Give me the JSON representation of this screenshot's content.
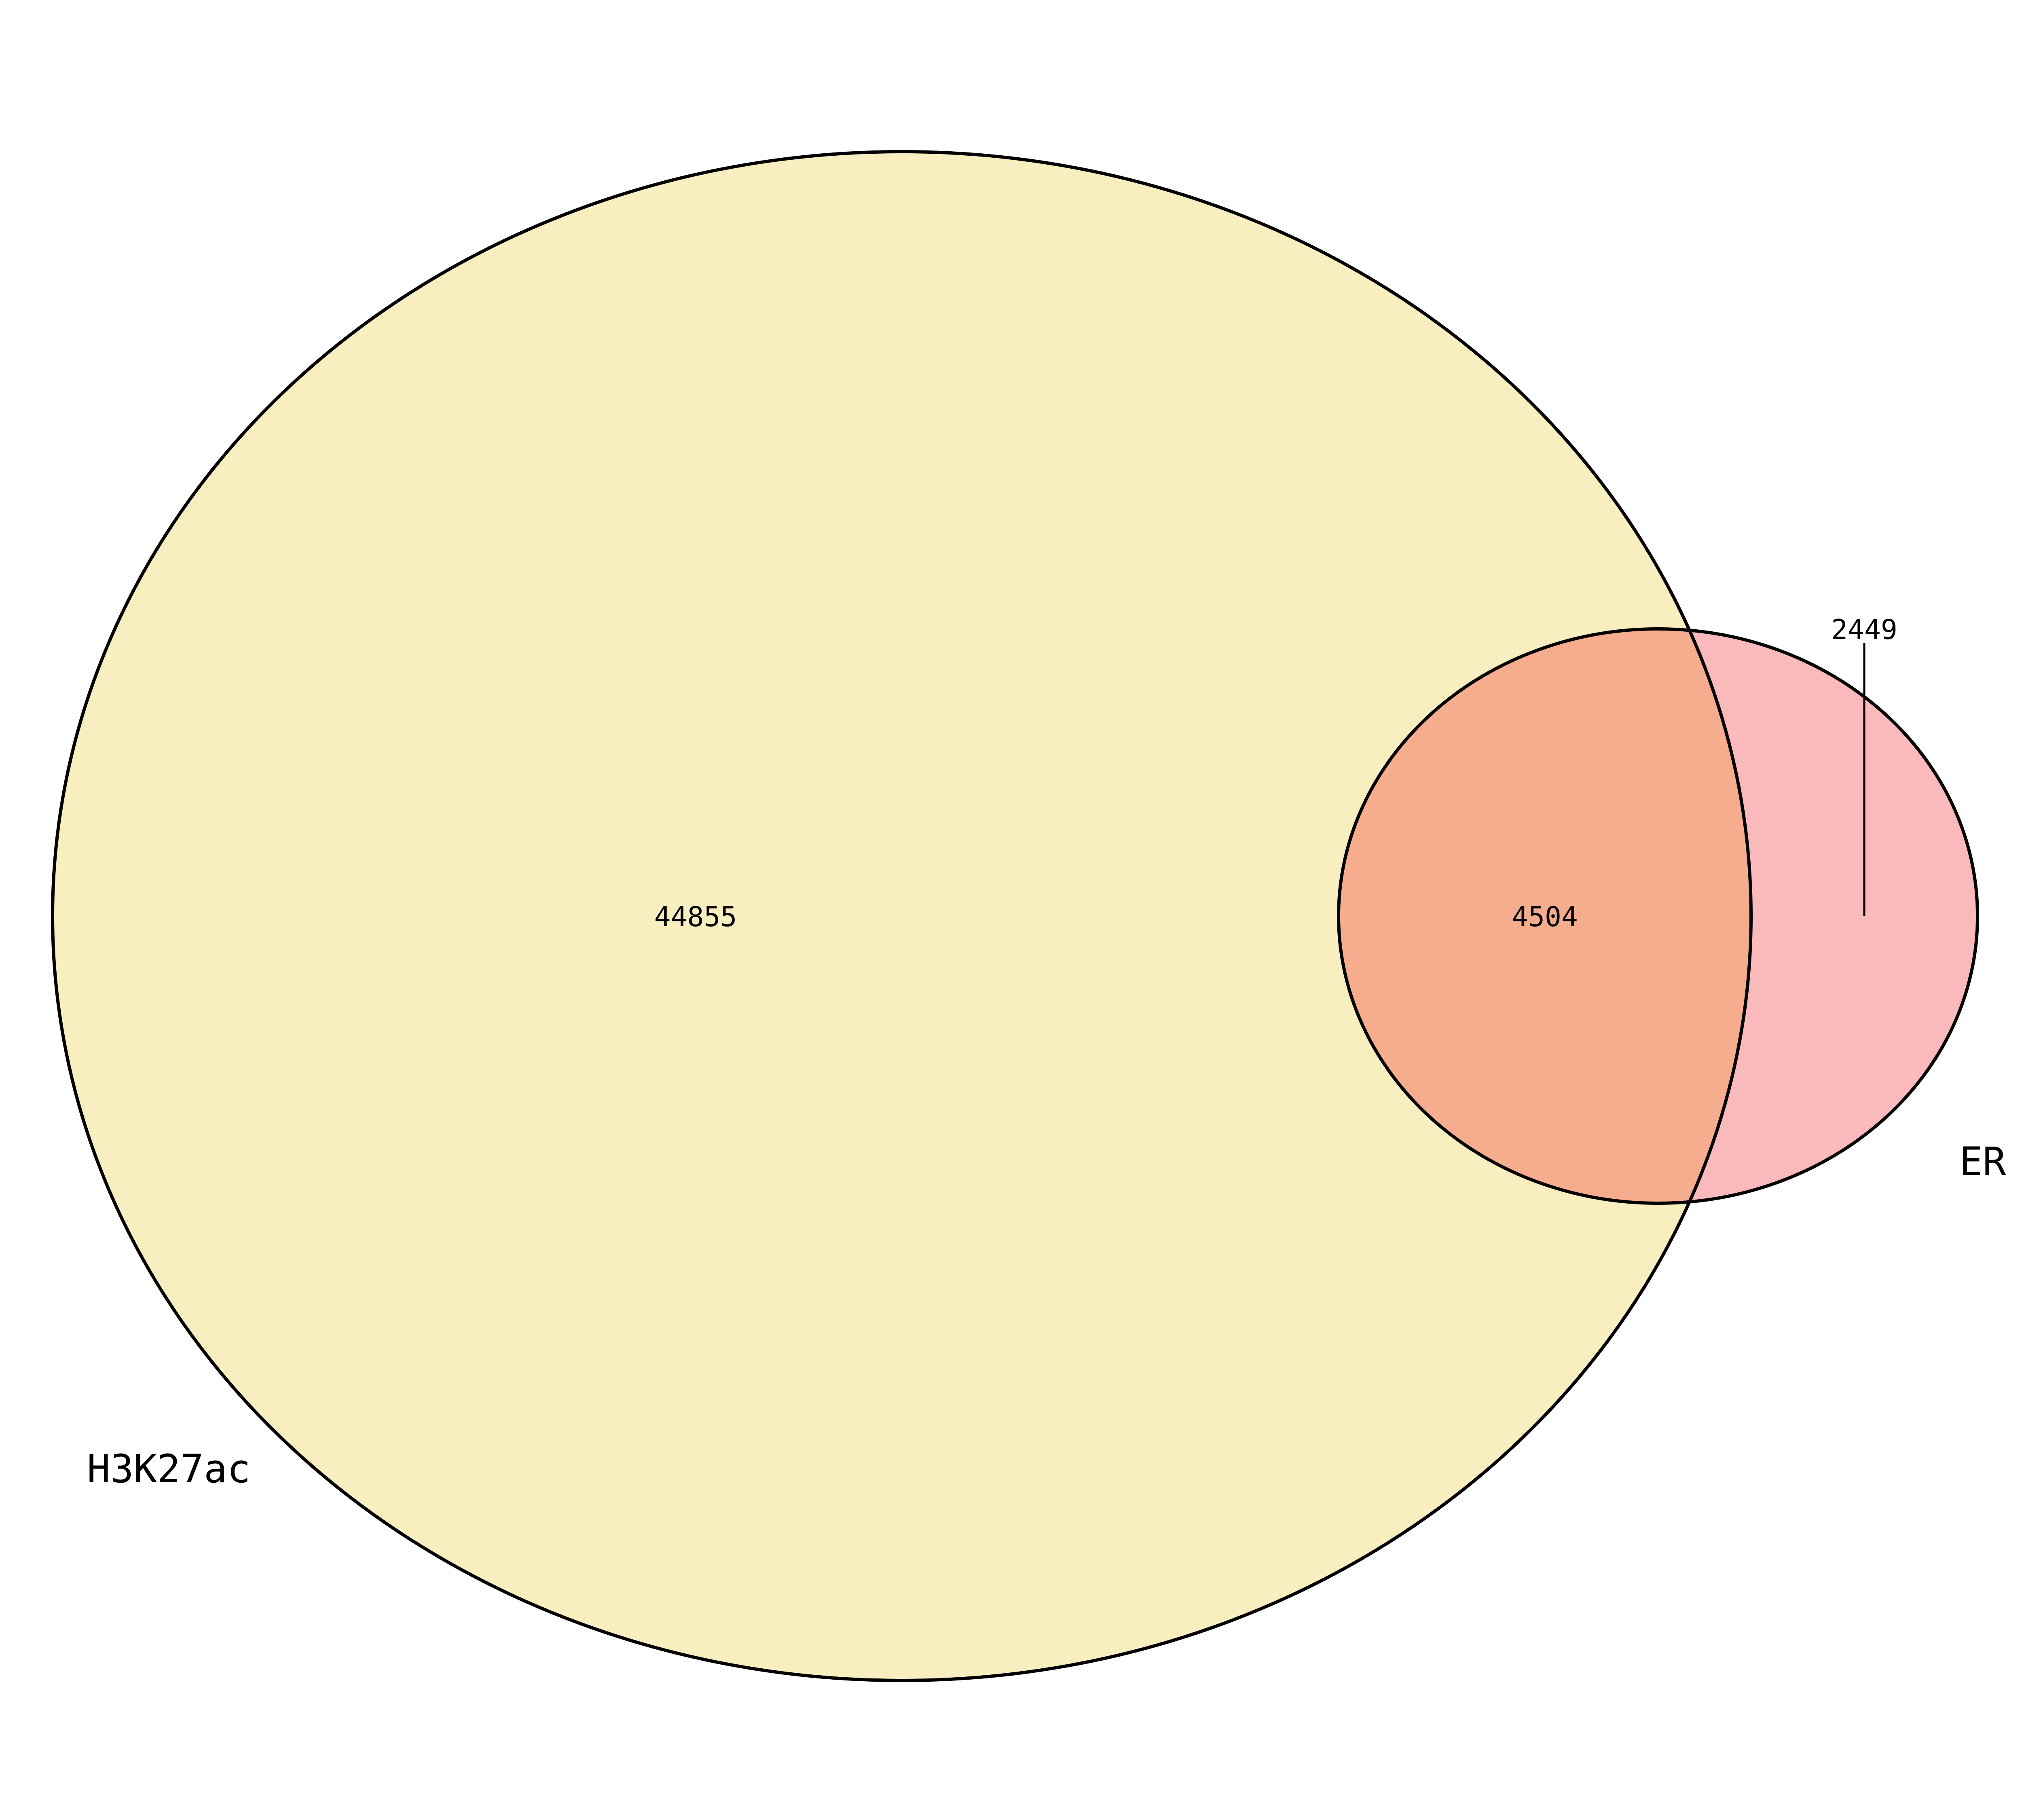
{
  "sets": {
    "h3k27ac": {
      "label": "H3K27ac",
      "color": "#f8eebf"
    },
    "er": {
      "label": "ER",
      "color": "#fab9ba"
    }
  },
  "overlap": {
    "color": "#f6ad8e"
  },
  "outline_color": "#000000",
  "counts": {
    "h3k27ac_only": "44855",
    "both": "4504",
    "er_only": "2449"
  }
}
